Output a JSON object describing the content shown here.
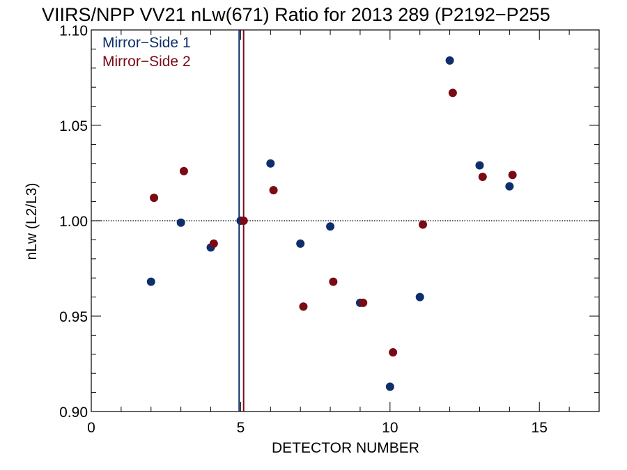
{
  "chart_data": {
    "type": "scatter",
    "title": "VIIRS/NPP VV21 nLw(671) Ratio for 2013 289 (P2192−P255",
    "xlabel": "DETECTOR NUMBER",
    "ylabel": "nLw (L2/L3)",
    "xlim": [
      0,
      17
    ],
    "ylim": [
      0.9,
      1.1
    ],
    "x_ticks": [
      0,
      5,
      10,
      15
    ],
    "x_tick_labels": [
      "0",
      "5",
      "10",
      "15"
    ],
    "y_ticks": [
      0.9,
      0.95,
      1.0,
      1.05,
      1.1
    ],
    "y_tick_labels": [
      "0.90",
      "0.95",
      "1.00",
      "1.05",
      "1.10"
    ],
    "reference_line_y": 1.0,
    "legend_position": "top-left",
    "series": [
      {
        "name": "Mirror−Side 1",
        "color": "#0d2f6b",
        "x": [
          2,
          3,
          4,
          5,
          6,
          7,
          8,
          9,
          10,
          11,
          12,
          13,
          14
        ],
        "y": [
          0.968,
          0.999,
          0.986,
          1.0,
          1.03,
          0.988,
          0.997,
          0.957,
          0.913,
          0.96,
          1.084,
          1.029,
          1.018
        ],
        "vline_x": 4.95
      },
      {
        "name": "Mirror−Side 2",
        "color": "#7a0a14",
        "x": [
          2.1,
          3.1,
          4.1,
          5.1,
          6.1,
          7.1,
          8.1,
          9.1,
          10.1,
          11.1,
          12.1,
          13.1,
          14.1
        ],
        "y": [
          1.012,
          1.026,
          0.988,
          1.0,
          1.016,
          0.955,
          0.968,
          0.957,
          0.931,
          0.998,
          1.067,
          1.023,
          1.024
        ],
        "vline_x": 5.1
      }
    ]
  }
}
